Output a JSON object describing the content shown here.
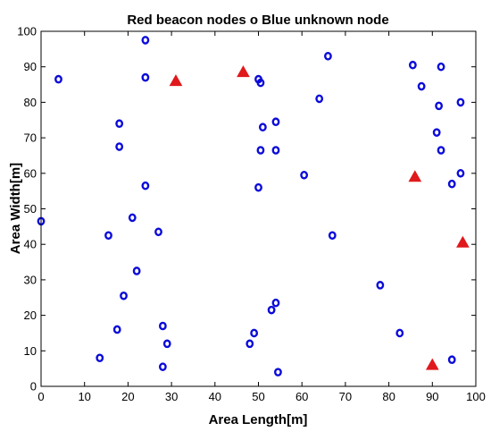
{
  "chart_data": {
    "type": "scatter",
    "title": "Red beacon nodes o Blue unknown node",
    "xlabel": "Area Length[m]",
    "ylabel": "Area Width[m]",
    "xlim": [
      0,
      100
    ],
    "ylim": [
      0,
      100
    ],
    "xticks": [
      "0",
      "10",
      "20",
      "30",
      "40",
      "50",
      "60",
      "70",
      "80",
      "90",
      "100"
    ],
    "yticks": [
      "0",
      "10",
      "20",
      "30",
      "40",
      "50",
      "60",
      "70",
      "80",
      "90",
      "100"
    ],
    "grid": false,
    "series": [
      {
        "marker": "triangle",
        "color": "#e0191c",
        "points": [
          [
            31.0,
            86.0
          ],
          [
            46.5,
            88.5
          ],
          [
            86.0,
            59.0
          ],
          [
            97.0,
            40.5
          ],
          [
            90.0,
            6.0
          ]
        ]
      },
      {
        "marker": "circle",
        "color": "#0b0bd9",
        "points": [
          [
            4.0,
            86.5
          ],
          [
            24.0,
            97.5
          ],
          [
            24.0,
            87.0
          ],
          [
            18.0,
            74.0
          ],
          [
            18.0,
            67.5
          ],
          [
            24.0,
            56.5
          ],
          [
            0.0,
            46.5
          ],
          [
            21.0,
            47.5
          ],
          [
            15.5,
            42.5
          ],
          [
            27.0,
            43.5
          ],
          [
            22.0,
            32.5
          ],
          [
            19.0,
            25.5
          ],
          [
            28.0,
            17.0
          ],
          [
            17.5,
            16.0
          ],
          [
            29.0,
            12.0
          ],
          [
            13.5,
            8.0
          ],
          [
            28.0,
            5.5
          ],
          [
            50.0,
            86.5
          ],
          [
            50.5,
            85.5
          ],
          [
            51.0,
            73.0
          ],
          [
            54.0,
            74.5
          ],
          [
            50.5,
            66.5
          ],
          [
            54.0,
            66.5
          ],
          [
            50.0,
            56.0
          ],
          [
            60.5,
            59.5
          ],
          [
            66.0,
            93.0
          ],
          [
            64.0,
            81.0
          ],
          [
            67.0,
            42.5
          ],
          [
            53.0,
            21.5
          ],
          [
            54.0,
            23.5
          ],
          [
            49.0,
            15.0
          ],
          [
            48.0,
            12.0
          ],
          [
            54.5,
            4.0
          ],
          [
            78.0,
            28.5
          ],
          [
            82.5,
            15.0
          ],
          [
            85.5,
            90.5
          ],
          [
            92.0,
            90.0
          ],
          [
            87.5,
            84.5
          ],
          [
            91.5,
            79.0
          ],
          [
            96.5,
            80.0
          ],
          [
            91.0,
            71.5
          ],
          [
            92.0,
            66.5
          ],
          [
            96.5,
            60.0
          ],
          [
            94.5,
            57.0
          ],
          [
            94.5,
            7.5
          ]
        ]
      }
    ]
  }
}
